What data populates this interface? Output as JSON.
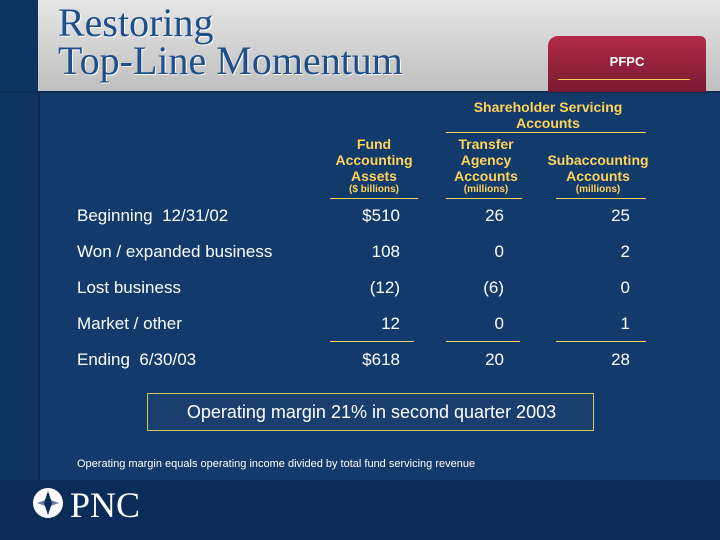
{
  "header": {
    "title": "Restoring\nTop-Line Momentum",
    "badge": "PFPC"
  },
  "table": {
    "group_header": "Shareholder Servicing Accounts",
    "col_headers": [
      {
        "label": "Fund Accounting Assets",
        "sub": "($ billions)"
      },
      {
        "label": "Transfer Agency Accounts",
        "sub": "(millions)"
      },
      {
        "label": "Subaccounting Accounts",
        "sub": "(millions)"
      }
    ],
    "rows": [
      {
        "label": "Beginning  12/31/02",
        "values": [
          "$510",
          "26",
          "25"
        ]
      },
      {
        "label": "Won / expanded business",
        "values": [
          "108",
          "0",
          "2"
        ]
      },
      {
        "label": "Lost business",
        "values": [
          "(12)",
          "(6)",
          "0"
        ]
      },
      {
        "label": "Market / other",
        "values": [
          "12",
          "0",
          "1"
        ]
      },
      {
        "label": "Ending  6/30/03",
        "values": [
          "$618",
          "20",
          "28"
        ]
      }
    ]
  },
  "callout": "Operating margin 21% in second quarter 2003",
  "footnote": "Operating margin equals operating income divided by total fund servicing revenue",
  "footer": {
    "logo_text": "PNC",
    "logo_icon": "pnc-logo-icon"
  },
  "colors": {
    "background": "#123A6A",
    "accent": "#FFD25A",
    "badge": "#B22A48"
  }
}
